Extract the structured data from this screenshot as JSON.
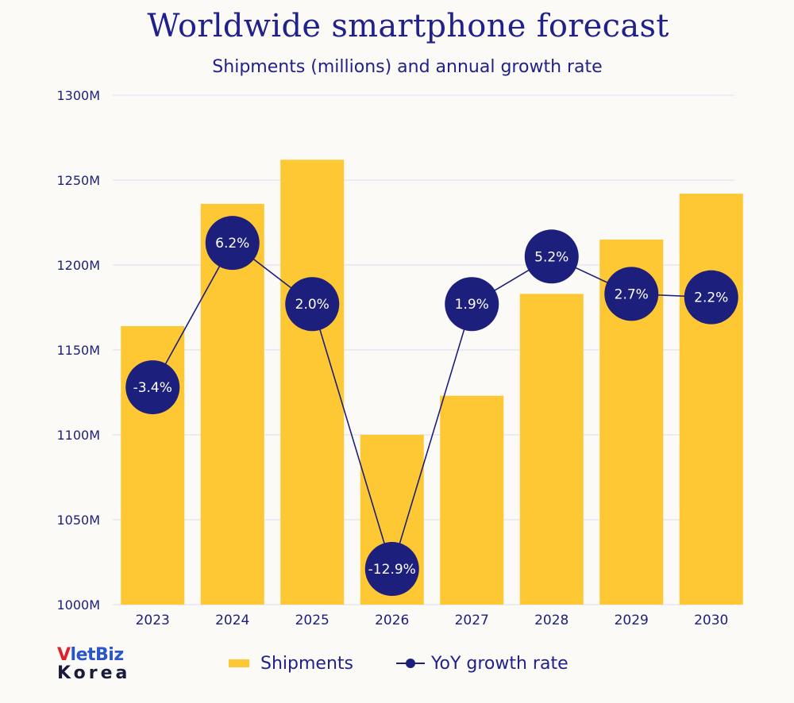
{
  "chart_data": {
    "type": "bar+line",
    "title": "Worldwide smartphone forecast",
    "subtitle": "Shipments (millions) and annual growth rate",
    "categories": [
      "2023",
      "2024",
      "2025",
      "2026",
      "2027",
      "2028",
      "2029",
      "2030"
    ],
    "y_axis": {
      "min": 1000,
      "max": 1300,
      "ticks": [
        1000,
        1050,
        1100,
        1150,
        1200,
        1250,
        1300
      ],
      "tick_labels": [
        "1000M",
        "1050M",
        "1100M",
        "1150M",
        "1200M",
        "1250M",
        "1300M"
      ],
      "grid": true
    },
    "series": [
      {
        "name": "Shipments",
        "type": "bar",
        "color": "#fdc833",
        "values": [
          1164,
          1236,
          1262,
          1100,
          1123,
          1183,
          1215,
          1242
        ]
      },
      {
        "name": "YoY growth rate",
        "type": "line",
        "color": "#1c1f7c",
        "values": [
          -3.4,
          6.2,
          2.0,
          -12.9,
          1.9,
          5.2,
          2.7,
          2.2
        ],
        "labels": [
          "-3.4%",
          "6.2%",
          "2.0%",
          "-12.9%",
          "1.9%",
          "5.2%",
          "2.7%",
          "2.2%"
        ],
        "plotted_at": [
          1128,
          1213,
          1177,
          1021,
          1177,
          1205,
          1183,
          1181
        ]
      }
    ],
    "legend": {
      "position": "bottom",
      "entries": [
        "Shipments",
        "YoY growth rate"
      ]
    }
  },
  "logo": {
    "top_v": "V",
    "top_rest": "letBiz",
    "bottom": "Korea"
  }
}
